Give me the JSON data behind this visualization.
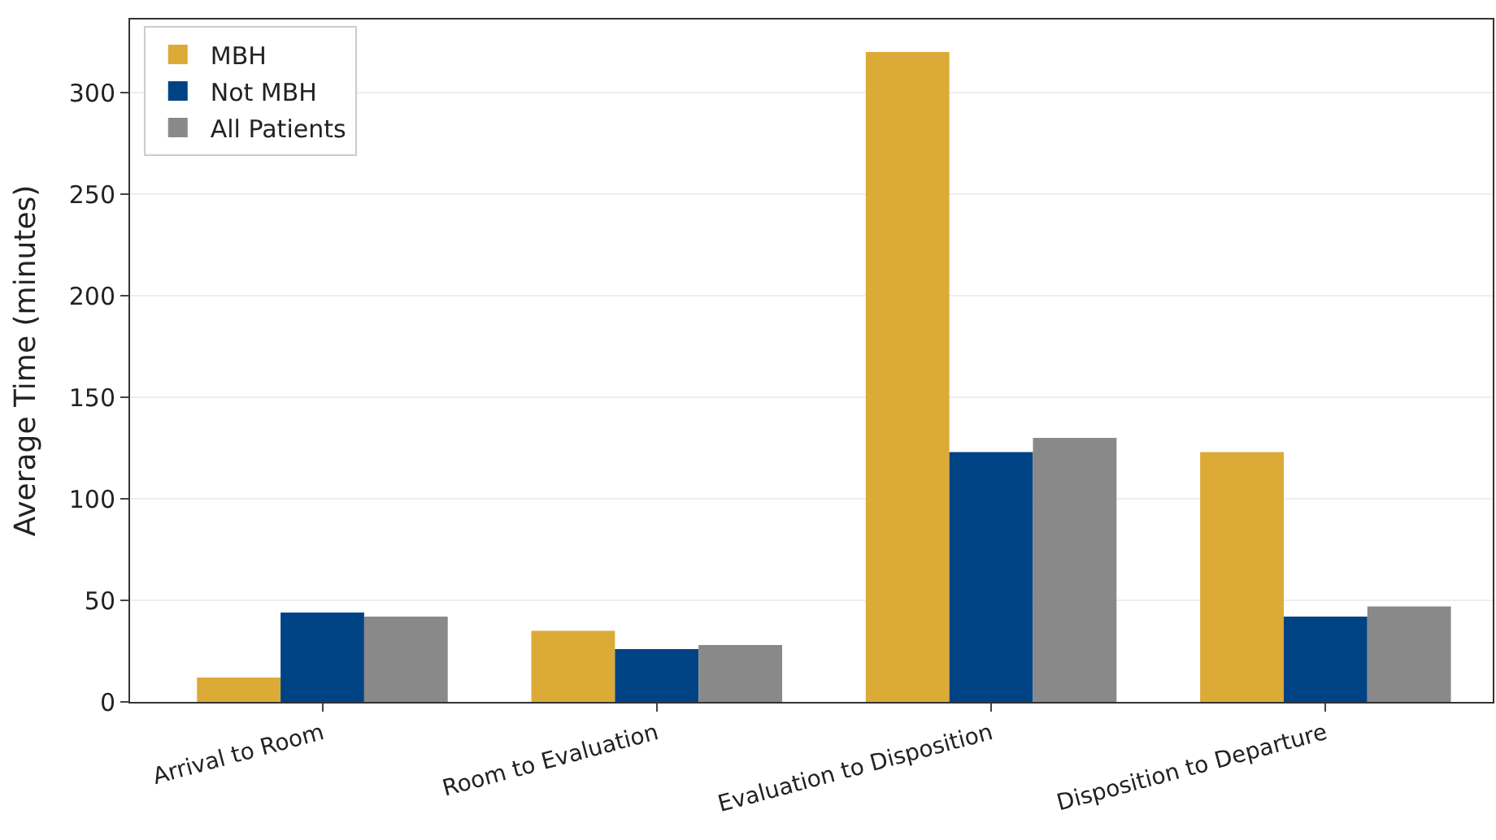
{
  "chart_data": {
    "type": "bar",
    "ylabel": "Average Time (minutes)",
    "categories": [
      "Arrival to Room",
      "Room to Evaluation",
      "Evaluation to Disposition",
      "Disposition to Departure"
    ],
    "series": [
      {
        "name": "MBH",
        "color": "#dcaa36",
        "values": [
          12,
          35,
          320,
          123
        ]
      },
      {
        "name": "Not MBH",
        "color": "#004385",
        "values": [
          44,
          26,
          123,
          42
        ]
      },
      {
        "name": "All Patients",
        "color": "#898989",
        "values": [
          42,
          28,
          130,
          47
        ]
      }
    ],
    "ylim": [
      0,
      336
    ],
    "yticks": [
      0,
      50,
      100,
      150,
      200,
      250,
      300
    ],
    "grid": "y",
    "legend": "top left"
  }
}
